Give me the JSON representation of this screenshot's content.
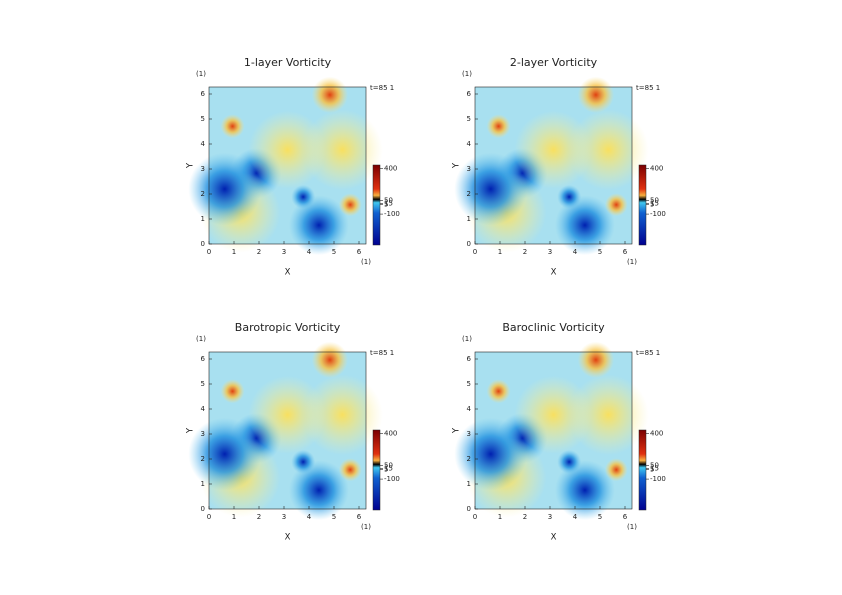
{
  "chart_data": [
    {
      "type": "heatmap",
      "title": "1-layer Vorticity",
      "xlabel": "X",
      "ylabel": "Y",
      "xunit": "(1)",
      "yunit": "(1)",
      "annotation": "t=85 1",
      "xlim": [
        0,
        6.28
      ],
      "ylim": [
        0,
        6.28
      ],
      "xticks": [
        0,
        1,
        2,
        3,
        4,
        5,
        6
      ],
      "yticks": [
        0,
        1,
        2,
        3,
        4,
        5,
        6
      ],
      "clim": [
        -440,
        440
      ],
      "cticks": [
        400,
        50,
        15,
        5,
        -100
      ]
    },
    {
      "type": "heatmap",
      "title": "2-layer Vorticity",
      "xlabel": "X",
      "ylabel": "Y",
      "xunit": "(1)",
      "yunit": "(1)",
      "annotation": "t=85 1",
      "xlim": [
        0,
        6.28
      ],
      "ylim": [
        0,
        6.28
      ],
      "xticks": [
        0,
        1,
        2,
        3,
        4,
        5,
        6
      ],
      "yticks": [
        0,
        1,
        2,
        3,
        4,
        5,
        6
      ],
      "clim": [
        -440,
        440
      ],
      "cticks": [
        400,
        50,
        15,
        5,
        -100
      ]
    },
    {
      "type": "heatmap",
      "title": "Barotropic Vorticity",
      "xlabel": "X",
      "ylabel": "Y",
      "xunit": "(1)",
      "yunit": "(1)",
      "annotation": "t=85 1",
      "xlim": [
        0,
        6.28
      ],
      "ylim": [
        0,
        6.28
      ],
      "xticks": [
        0,
        1,
        2,
        3,
        4,
        5,
        6
      ],
      "yticks": [
        0,
        1,
        2,
        3,
        4,
        5,
        6
      ],
      "clim": [
        -440,
        440
      ],
      "cticks": [
        400,
        50,
        15,
        5,
        -100
      ]
    },
    {
      "type": "heatmap",
      "title": "Baroclinic Vorticity",
      "xlabel": "X",
      "ylabel": "Y",
      "xunit": "(1)",
      "yunit": "(1)",
      "annotation": "t=85 1",
      "xlim": [
        0,
        6.28
      ],
      "ylim": [
        0,
        6.28
      ],
      "xticks": [
        0,
        1,
        2,
        3,
        4,
        5,
        6
      ],
      "yticks": [
        0,
        1,
        2,
        3,
        4,
        5,
        6
      ],
      "clim": [
        -440,
        440
      ],
      "cticks": [
        400,
        50,
        15,
        5,
        -100
      ]
    }
  ]
}
